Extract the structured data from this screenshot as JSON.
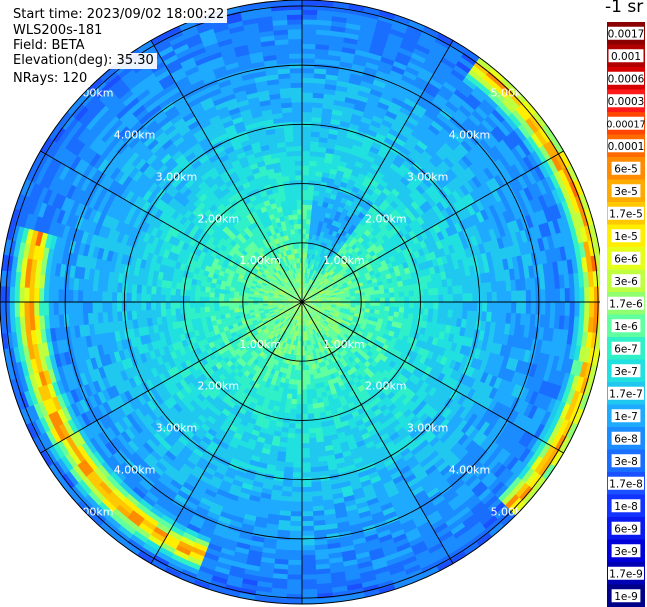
{
  "info": {
    "start_time": "Start time: 2023/09/02 18:00:22",
    "instrument": "WLS200s-181",
    "field": "Field: BETA",
    "elevation": "Elevation(deg): 35.30",
    "nrays": "NRays: 120"
  },
  "chart_data": {
    "type": "heatmap",
    "projection": "polar-ppi",
    "title": "",
    "range_rings_km": [
      1,
      2,
      3,
      4,
      5
    ],
    "range_labels": [
      "1.00km",
      "2.00km",
      "3.00km",
      "4.00km",
      "5.00km"
    ],
    "max_range_km": 5.1,
    "azimuth_lines_deg": [
      0,
      30,
      60,
      90,
      120,
      150,
      180,
      210,
      240,
      270,
      300,
      330
    ],
    "n_rays": 120,
    "colorbar": {
      "unit_label": "-1 sr",
      "labels": [
        "0.0017",
        "0.001",
        "0.0006",
        "0.0003",
        "0.00017",
        "0.0001",
        "6e-5",
        "3e-5",
        "1.7e-5",
        "1e-5",
        "6e-6",
        "3e-6",
        "1.7e-6",
        "1e-6",
        "6e-7",
        "3e-7",
        "1.7e-7",
        "1e-7",
        "6e-8",
        "3e-8",
        "1.7e-8",
        "1e-8",
        "6e-9",
        "3e-9",
        "1.7e-9",
        "1e-9"
      ],
      "colors": [
        "#8b0000",
        "#b00000",
        "#d60000",
        "#ff1a1a",
        "#ff4500",
        "#ff6a00",
        "#ff8c00",
        "#ffaa00",
        "#ffc800",
        "#ffee00",
        "#e6ff1a",
        "#c0ff40",
        "#90ff70",
        "#60ffa0",
        "#30f0c8",
        "#20e0e0",
        "#20c8f0",
        "#1eaaff",
        "#1a8cff",
        "#1a6eff",
        "#1a50ff",
        "#1232ff",
        "#0a1aee",
        "#0000d8",
        "#0000b4",
        "#000088"
      ]
    },
    "features": [
      {
        "name": "aerosol-layer-west-south",
        "azimuth_start_deg": 200,
        "azimuth_end_deg": 285,
        "range_km": 4.6,
        "peak": "1e-5"
      },
      {
        "name": "aerosol-layer-east",
        "azimuth_start_deg": 35,
        "azimuth_end_deg": 135,
        "range_km": 4.95,
        "peak": "6e-6"
      },
      {
        "name": "low-signal-north-east",
        "azimuth_start_deg": 5,
        "azimuth_end_deg": 35,
        "range_km": 1.3,
        "peak": "6e-9"
      }
    ]
  }
}
